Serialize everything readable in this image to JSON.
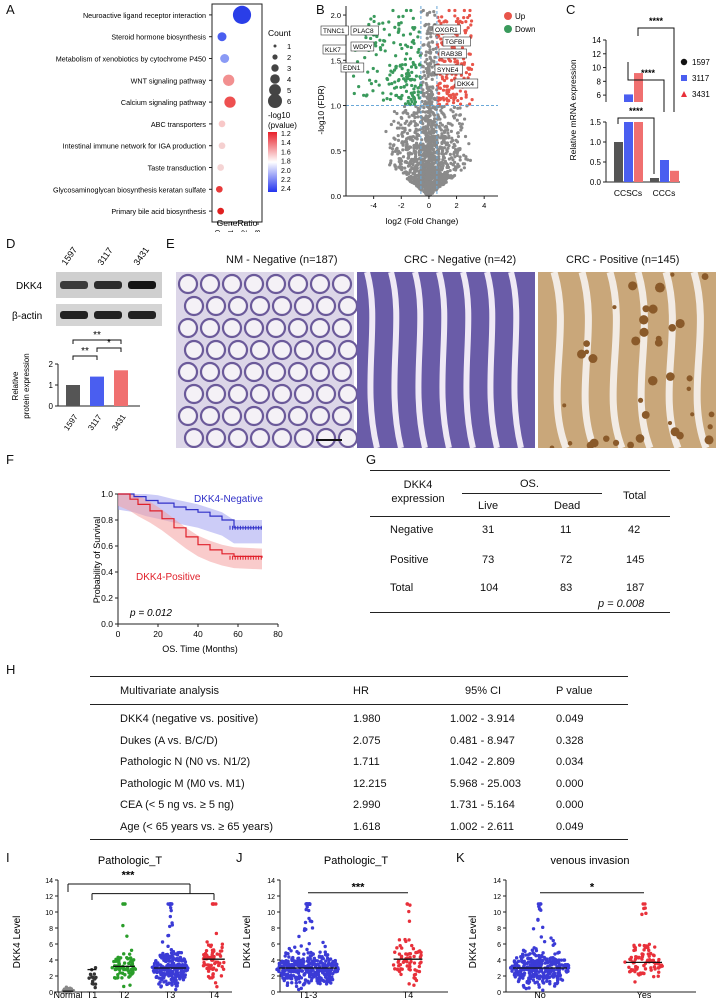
{
  "panel_letters": [
    "A",
    "B",
    "C",
    "D",
    "E",
    "F",
    "G",
    "H",
    "I",
    "J",
    "K"
  ],
  "A": {
    "pathways": [
      "Neuroactive ligand receptor interaction",
      "Steroid hormone biosynthesis",
      "Metabolism of xenobiotics by cytochrome P450",
      "WNT signaling pathway",
      "Calcium signaling pathway",
      "ABC transporters",
      "Intestinal immune network for IGA production",
      "Taste transduction",
      "Glycosaminoglycan biosynthesis keratan sulfate",
      "Primary bile acid biosynthesis"
    ],
    "xlabel": "GeneRatio",
    "xticks": [
      "0.0",
      "0.1",
      "0.2",
      "0.3"
    ],
    "count_title": "Count",
    "count_levels": [
      "1",
      "2",
      "3",
      "4",
      "5",
      "6"
    ],
    "color_title": "-log10\n(pvalue)",
    "color_title_lines": [
      "-log10",
      "(pvalue)"
    ],
    "color_ticks": [
      "1.2",
      "1.4",
      "1.6",
      "1.8",
      "2.0",
      "2.2",
      "2.4"
    ]
  },
  "B": {
    "xlabel": "log2 (Fold Change)",
    "ylabel": "-log10 (FDR)",
    "xticks": [
      "-4",
      "-2",
      "0",
      "2",
      "4"
    ],
    "yticks": [
      "0.0",
      "0.5",
      "1.0",
      "1.5",
      "2.0"
    ],
    "legend": [
      "Up",
      "Down"
    ],
    "up_genes": [
      "OXGR1",
      "TGFBI",
      "RAB3B",
      "SYNE4",
      "DKK4"
    ],
    "down_genes": [
      "TNNC1",
      "PLAC8",
      "KLK7",
      "WDPY",
      "EDN1"
    ]
  },
  "C": {
    "ylabel": "Relative mRNA expression",
    "groups": [
      "CCSCs",
      "CCCs"
    ],
    "legend": [
      "1597",
      "3117",
      "3431"
    ],
    "yticks_upper": [
      "6",
      "8",
      "10",
      "12",
      "14"
    ],
    "yticks_lower": [
      "0.0",
      "0.5",
      "1.0",
      "1.5"
    ],
    "sig": "****"
  },
  "D": {
    "lanes": [
      "1597",
      "3117",
      "3431"
    ],
    "bands": [
      "DKK4",
      "β-actin"
    ],
    "ylabel": "Relative\nprotein expression",
    "ylabel_lines": [
      "Relative",
      "protein expression"
    ],
    "yticks": [
      "0",
      "1",
      "2"
    ],
    "sig": [
      "**",
      "**",
      "*"
    ]
  },
  "E": {
    "titles": [
      "NM - Negative  (n=187)",
      "CRC - Negative  (n=42)",
      "CRC - Positive  (n=145)"
    ]
  },
  "F": {
    "ylabel": "Probability of Survival",
    "xlabel": "OS. Time (Months)",
    "xticks": [
      "0",
      "20",
      "40",
      "60",
      "80"
    ],
    "yticks": [
      "0.0",
      "0.2",
      "0.4",
      "0.6",
      "0.8",
      "1.0"
    ],
    "neg_label": "DKK4-Negative",
    "pos_label": "DKK4-Positive",
    "pvalue": "p = 0.012"
  },
  "G": {
    "col1": "DKK4\nexpression",
    "col1_lines": [
      "DKK4",
      "expression"
    ],
    "os": "OS.",
    "live": "Live",
    "dead": "Dead",
    "total": "Total",
    "rows": [
      {
        "label": "Negative",
        "live": "31",
        "dead": "11",
        "total": "42"
      },
      {
        "label": "Positive",
        "live": "73",
        "dead": "72",
        "total": "145"
      },
      {
        "label": "Total",
        "live": "104",
        "dead": "83",
        "total": "187"
      }
    ],
    "pvalue": "p = 0.008"
  },
  "H": {
    "headers": [
      "Multivariate analysis",
      "HR",
      "95% CI",
      "P value"
    ],
    "rows": [
      [
        "DKK4 (negative vs. positive)",
        "1.980",
        "1.002 - 3.914",
        "0.049"
      ],
      [
        "Dukes (A vs. B/C/D)",
        "2.075",
        "0.481 - 8.947",
        "0.328"
      ],
      [
        "Pathologic N (N0 vs. N1/2)",
        "1.711",
        "1.042 - 2.809",
        "0.034"
      ],
      [
        "Pathologic M (M0 vs. M1)",
        "12.215",
        "5.968 - 25.003",
        "0.000"
      ],
      [
        "CEA (< 5 ng vs. ≥ 5 ng)",
        "2.990",
        "1.731 - 5.164",
        "0.000"
      ],
      [
        "Age (< 65 years vs. ≥ 65 years)",
        "1.618",
        "1.002 - 2.611",
        "0.049"
      ]
    ]
  },
  "I": {
    "title": "Pathologic_T",
    "ylabel": "DKK4 Level",
    "cats": [
      "Normal",
      "T1",
      "T2",
      "T3",
      "T4"
    ],
    "sig": "***",
    "yticks": [
      "0",
      "2",
      "4",
      "6",
      "8",
      "10",
      "12",
      "14"
    ]
  },
  "J": {
    "title": "Pathologic_T",
    "ylabel": "DKK4 Level",
    "cats": [
      "T1-3",
      "T4"
    ],
    "sig": "***",
    "yticks": [
      "0",
      "2",
      "4",
      "6",
      "8",
      "10",
      "12",
      "14"
    ]
  },
  "K": {
    "title": "venous invasion",
    "ylabel": "DKK4 Level",
    "cats": [
      "No",
      "Yes"
    ],
    "sig": "*",
    "yticks": [
      "0",
      "2",
      "4",
      "6",
      "8",
      "10",
      "12",
      "14"
    ]
  },
  "colors": {
    "up": "#e8554a",
    "down": "#3a9a5c",
    "grey": "#8a8a8a",
    "blue": "#3b3bd6",
    "red": "#e8303a",
    "green": "#2a9d2a",
    "black": "#111111",
    "pink": "#f08080"
  }
}
